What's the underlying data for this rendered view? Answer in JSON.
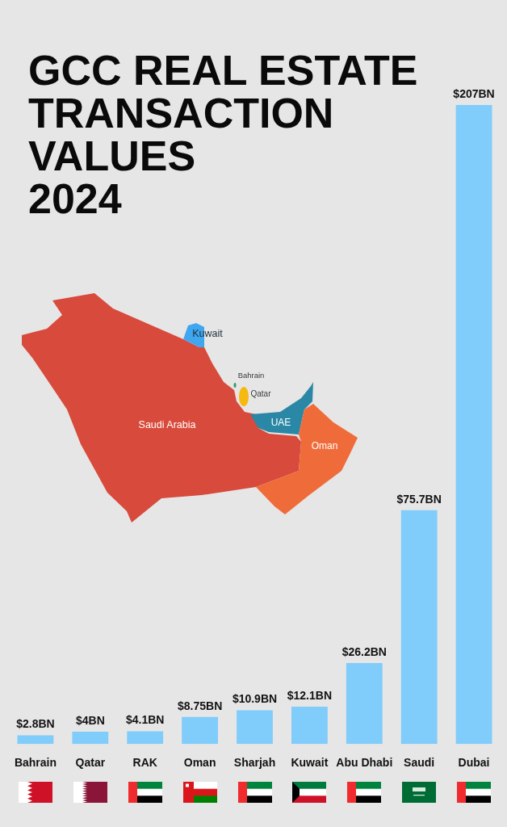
{
  "chart_data": {
    "type": "bar",
    "title": "GCC REAL ESTATE\nTRANSACTION\nVALUES\n2024",
    "categories": [
      "Bahrain",
      "Qatar",
      "RAK",
      "Oman",
      "Sharjah",
      "Kuwait",
      "Abu Dhabi",
      "Saudi",
      "Dubai"
    ],
    "values": [
      2.8,
      4,
      4.1,
      8.75,
      10.9,
      12.1,
      26.2,
      75.7,
      207
    ],
    "value_labels": [
      "$2.8BN",
      "$4BN",
      "$4.1BN",
      "$8.75BN",
      "$10.9BN",
      "$12.1BN",
      "$26.2BN",
      "$75.7BN",
      "$207BN"
    ],
    "color": "#80ccfa",
    "annotations": [
      "Kuwait",
      "Bahrain",
      "Qatar",
      "Saudi Arabia",
      "UAE",
      "Oman"
    ]
  }
}
